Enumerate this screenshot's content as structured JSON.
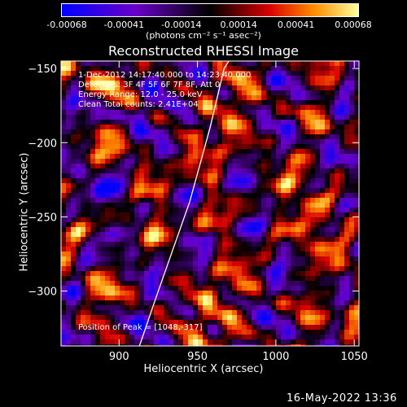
{
  "colorbar": {
    "ticks": [
      "-0.00068",
      "-0.00041",
      "-0.00014",
      "0.00014",
      "0.00041",
      "0.00068"
    ],
    "unit_label": "(photons cm⁻² s⁻¹ asec⁻²)",
    "colors": [
      "#0000ff",
      "#6a00c8",
      "#000000",
      "#d80000",
      "#ff8c00",
      "#ffff9a"
    ]
  },
  "chart_data": {
    "type": "heatmap",
    "title": "Reconstructed RHESSI Image",
    "xlabel": "Heliocentric X (arcsec)",
    "ylabel": "Heliocentric Y (arcsec)",
    "xlim": [
      863,
      1053
    ],
    "ylim": [
      -337,
      -145
    ],
    "x_ticks": [
      900,
      950,
      1000,
      1050
    ],
    "y_ticks": [
      -150,
      -200,
      -250,
      -300
    ],
    "limb_curve": [
      [
        913,
        -337
      ],
      [
        925,
        -300
      ],
      [
        945,
        -240
      ],
      [
        958,
        -190
      ],
      [
        967,
        -150
      ],
      [
        970,
        -145
      ]
    ],
    "annotations": [
      "1-Dec-2012 14:17:40.000 to 14:23:40.000",
      "Detectors: 3F 4F 5F 6F 7F 8F, Att 0",
      "Energy Range: 12.0 - 25.0 keV",
      "Clean     Total counts: 2.41E+04",
      "Position of Peak = [1048,-317]"
    ]
  },
  "footer": {
    "timestamp": "16-May-2022 13:36"
  }
}
